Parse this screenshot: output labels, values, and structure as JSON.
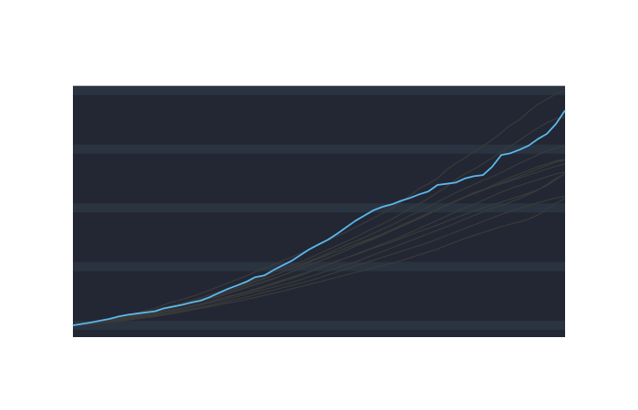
{
  "chart_data": {
    "type": "line",
    "title": "",
    "xlabel": "",
    "ylabel": "",
    "xlim": [
      0,
      54
    ],
    "ylim": [
      -0.4,
      8.1
    ],
    "grid": true,
    "y_gridlines": [
      0,
      2,
      4,
      6,
      8
    ],
    "legend": "none",
    "x": [
      0,
      1,
      2,
      3,
      4,
      5,
      6,
      7,
      8,
      9,
      10,
      11,
      12,
      13,
      14,
      15,
      16,
      17,
      18,
      19,
      20,
      21,
      22,
      23,
      24,
      25,
      26,
      27,
      28,
      29,
      30,
      31,
      32,
      33,
      34,
      35,
      36,
      37,
      38,
      39,
      40,
      41,
      42,
      43,
      44,
      45,
      46,
      47,
      48,
      49,
      50,
      51,
      52,
      53,
      54
    ],
    "colors": {
      "background": "#222733",
      "grid_band": "#2a3440",
      "highlight": "#5bb8ec",
      "context": "#3a3a3a"
    },
    "highlight_series": {
      "values": [
        0.0,
        0.05,
        0.1,
        0.16,
        0.22,
        0.3,
        0.36,
        0.4,
        0.44,
        0.48,
        0.58,
        0.64,
        0.7,
        0.78,
        0.84,
        0.96,
        1.1,
        1.24,
        1.36,
        1.48,
        1.64,
        1.7,
        1.88,
        2.04,
        2.2,
        2.4,
        2.6,
        2.76,
        2.92,
        3.12,
        3.34,
        3.56,
        3.74,
        3.92,
        4.04,
        4.12,
        4.24,
        4.34,
        4.46,
        4.56,
        4.78,
        4.82,
        4.86,
        5.0,
        5.08,
        5.12,
        5.4,
        5.8,
        5.86,
        5.98,
        6.12,
        6.34,
        6.52,
        6.86,
        7.32
      ]
    },
    "context_series": [
      {
        "values": [
          0.0,
          0.04,
          0.09,
          0.14,
          0.2,
          0.28,
          0.36,
          0.42,
          0.5,
          0.58,
          0.7,
          0.8,
          0.88,
          0.98,
          1.08,
          1.2,
          1.32,
          1.44,
          1.56,
          1.68,
          1.82,
          1.94,
          2.06,
          2.2,
          2.32,
          2.46,
          2.6,
          2.74,
          2.9,
          3.04,
          3.18,
          3.34,
          3.5,
          3.66,
          3.82,
          3.98,
          4.2,
          4.42,
          4.66,
          4.82,
          5.0,
          5.3,
          5.52,
          5.7,
          5.92,
          6.1,
          6.32,
          6.56,
          6.82,
          7.0,
          7.28,
          7.52,
          7.7,
          7.88,
          8.0
        ]
      },
      {
        "values": [
          0.0,
          0.04,
          0.08,
          0.12,
          0.18,
          0.26,
          0.32,
          0.38,
          0.44,
          0.5,
          0.6,
          0.68,
          0.76,
          0.84,
          0.94,
          1.04,
          1.14,
          1.24,
          1.34,
          1.44,
          1.56,
          1.68,
          1.8,
          1.92,
          2.04,
          2.16,
          2.3,
          2.44,
          2.58,
          2.72,
          2.86,
          3.0,
          3.16,
          3.32,
          3.46,
          3.62,
          3.8,
          3.98,
          4.14,
          4.32,
          4.52,
          4.72,
          4.96,
          5.16,
          5.32,
          5.5,
          5.7,
          5.9,
          6.1,
          6.3,
          6.52,
          6.72,
          6.9,
          7.04,
          7.1
        ]
      },
      {
        "values": [
          0.0,
          0.03,
          0.07,
          0.11,
          0.16,
          0.22,
          0.28,
          0.34,
          0.4,
          0.46,
          0.54,
          0.62,
          0.7,
          0.78,
          0.86,
          0.96,
          1.06,
          1.16,
          1.26,
          1.36,
          1.48,
          1.58,
          1.7,
          1.82,
          1.94,
          2.06,
          2.2,
          2.32,
          2.46,
          2.6,
          2.74,
          2.86,
          3.0,
          3.14,
          3.28,
          3.42,
          3.58,
          3.74,
          3.88,
          4.04,
          4.2,
          4.36,
          4.52,
          4.66,
          4.8,
          4.94,
          5.06,
          5.2,
          5.36,
          5.52,
          5.66,
          5.8,
          5.94,
          6.02,
          6.12
        ]
      },
      {
        "values": [
          0.0,
          0.03,
          0.06,
          0.1,
          0.14,
          0.2,
          0.26,
          0.32,
          0.38,
          0.44,
          0.52,
          0.6,
          0.68,
          0.74,
          0.82,
          0.9,
          0.98,
          1.08,
          1.18,
          1.28,
          1.38,
          1.48,
          1.58,
          1.7,
          1.82,
          1.94,
          2.06,
          2.18,
          2.3,
          2.42,
          2.56,
          2.7,
          2.82,
          2.94,
          3.08,
          3.22,
          3.36,
          3.5,
          3.64,
          3.78,
          3.94,
          4.08,
          4.22,
          4.36,
          4.5,
          4.62,
          4.76,
          4.9,
          5.04,
          5.16,
          5.28,
          5.4,
          5.5,
          5.6,
          5.66
        ]
      },
      {
        "values": [
          0.0,
          0.04,
          0.08,
          0.12,
          0.17,
          0.23,
          0.3,
          0.36,
          0.42,
          0.48,
          0.56,
          0.64,
          0.72,
          0.8,
          0.88,
          0.98,
          1.08,
          1.18,
          1.28,
          1.38,
          1.5,
          1.6,
          1.7,
          1.82,
          1.94,
          2.04,
          2.16,
          2.28,
          2.4,
          2.52,
          2.64,
          2.76,
          2.88,
          3.0,
          3.12,
          3.26,
          3.4,
          3.52,
          3.66,
          3.8,
          3.96,
          4.1,
          4.24,
          4.38,
          4.52,
          4.62,
          4.72,
          4.82,
          4.92,
          5.02,
          5.12,
          5.22,
          5.32,
          5.42,
          5.5
        ]
      },
      {
        "values": [
          0.0,
          0.03,
          0.06,
          0.09,
          0.13,
          0.18,
          0.23,
          0.28,
          0.33,
          0.38,
          0.45,
          0.52,
          0.59,
          0.66,
          0.73,
          0.8,
          0.88,
          0.96,
          1.04,
          1.12,
          1.2,
          1.3,
          1.4,
          1.5,
          1.6,
          1.7,
          1.82,
          1.94,
          2.06,
          2.18,
          2.3,
          2.42,
          2.54,
          2.66,
          2.78,
          2.9,
          3.02,
          3.16,
          3.3,
          3.44,
          3.58,
          3.72,
          3.86,
          4.0,
          4.12,
          4.26,
          4.4,
          4.54,
          4.66,
          4.76,
          4.86,
          4.96,
          5.06,
          5.16,
          5.22
        ]
      },
      {
        "values": [
          0.0,
          0.03,
          0.06,
          0.09,
          0.13,
          0.17,
          0.22,
          0.27,
          0.32,
          0.37,
          0.43,
          0.49,
          0.55,
          0.62,
          0.69,
          0.76,
          0.83,
          0.9,
          0.98,
          1.06,
          1.14,
          1.22,
          1.3,
          1.38,
          1.46,
          1.56,
          1.66,
          1.76,
          1.86,
          1.96,
          2.06,
          2.16,
          2.28,
          2.4,
          2.52,
          2.64,
          2.76,
          2.88,
          3.0,
          3.12,
          3.24,
          3.36,
          3.48,
          3.62,
          3.74,
          3.86,
          3.98,
          4.08,
          4.2,
          4.32,
          4.46,
          4.6,
          4.8,
          5.0,
          5.16
        ]
      },
      {
        "values": [
          0.0,
          0.02,
          0.05,
          0.08,
          0.11,
          0.15,
          0.19,
          0.23,
          0.28,
          0.33,
          0.38,
          0.44,
          0.5,
          0.56,
          0.62,
          0.68,
          0.75,
          0.82,
          0.89,
          0.96,
          1.04,
          1.12,
          1.2,
          1.28,
          1.36,
          1.44,
          1.52,
          1.62,
          1.72,
          1.82,
          1.92,
          2.02,
          2.12,
          2.22,
          2.32,
          2.42,
          2.52,
          2.62,
          2.72,
          2.82,
          2.94,
          3.06,
          3.18,
          3.3,
          3.42,
          3.54,
          3.66,
          3.78,
          3.88,
          3.98,
          4.08,
          4.18,
          4.26,
          4.34,
          4.4
        ]
      },
      {
        "values": [
          0.0,
          0.03,
          0.06,
          0.1,
          0.14,
          0.19,
          0.25,
          0.3,
          0.35,
          0.4,
          0.47,
          0.54,
          0.6,
          0.67,
          0.74,
          0.82,
          0.9,
          0.98,
          1.06,
          1.14,
          1.24,
          1.34,
          1.44,
          1.54,
          1.64,
          1.74,
          1.84,
          1.96,
          2.08,
          2.2,
          2.3,
          2.4,
          2.52,
          2.64,
          2.74,
          2.84,
          2.96,
          3.08,
          3.2,
          3.3,
          3.42,
          3.54,
          3.66,
          3.78,
          3.9,
          4.0,
          4.1,
          4.2,
          4.3,
          4.4,
          4.5,
          4.62,
          4.76,
          4.96,
          5.18
        ]
      },
      {
        "values": [
          0.0,
          0.02,
          0.04,
          0.07,
          0.1,
          0.14,
          0.18,
          0.22,
          0.26,
          0.3,
          0.35,
          0.4,
          0.46,
          0.52,
          0.58,
          0.64,
          0.7,
          0.76,
          0.82,
          0.88,
          0.95,
          1.02,
          1.09,
          1.16,
          1.24,
          1.32,
          1.4,
          1.48,
          1.56,
          1.64,
          1.72,
          1.8,
          1.88,
          1.96,
          2.04,
          2.12,
          2.2,
          2.3,
          2.4,
          2.5,
          2.6,
          2.72,
          2.84,
          2.96,
          3.06,
          3.16,
          3.26,
          3.36,
          3.44,
          3.52,
          3.62,
          3.76,
          3.96,
          4.16,
          4.32
        ]
      },
      {
        "values": [
          0.0,
          0.03,
          0.07,
          0.11,
          0.15,
          0.21,
          0.27,
          0.33,
          0.39,
          0.45,
          0.53,
          0.6,
          0.68,
          0.76,
          0.84,
          0.92,
          1.0,
          1.1,
          1.2,
          1.3,
          1.4,
          1.5,
          1.6,
          1.7,
          1.82,
          1.94,
          2.06,
          2.18,
          2.3,
          2.42,
          2.56,
          2.7,
          2.84,
          2.98,
          3.12,
          3.26,
          3.4,
          3.54,
          3.68,
          3.82,
          3.96,
          4.1,
          4.24,
          4.36,
          4.48,
          4.6,
          4.72,
          4.84,
          4.96,
          5.08,
          5.2,
          5.32,
          5.44,
          5.56,
          5.62
        ]
      }
    ]
  }
}
